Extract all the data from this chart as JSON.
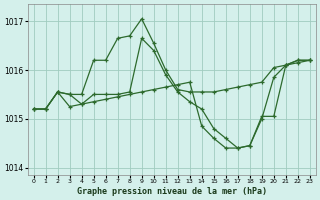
{
  "title": "Graphe pression niveau de la mer (hPa)",
  "background_color": "#d4f0eb",
  "grid_color": "#a0ccbf",
  "line_color": "#2d6a2d",
  "ylim": [
    1013.85,
    1017.35
  ],
  "xlim": [
    -0.5,
    23.5
  ],
  "yticks": [
    1014,
    1015,
    1016,
    1017
  ],
  "xticks": [
    0,
    1,
    2,
    3,
    4,
    5,
    6,
    7,
    8,
    9,
    10,
    11,
    12,
    13,
    14,
    15,
    16,
    17,
    18,
    19,
    20,
    21,
    22,
    23
  ],
  "lineA_x": [
    0,
    1,
    2,
    3,
    4,
    5,
    6,
    7,
    8,
    9,
    10,
    11,
    12,
    13,
    14,
    15,
    16,
    17,
    18,
    19,
    20,
    21,
    22,
    23
  ],
  "lineA_y": [
    1015.2,
    1015.2,
    1015.55,
    1015.5,
    1015.5,
    1016.2,
    1016.2,
    1016.65,
    1016.7,
    1017.05,
    1016.55,
    1016.0,
    1015.6,
    1015.55,
    1015.55,
    1015.55,
    1015.6,
    1015.65,
    1015.7,
    1015.75,
    1016.05,
    1016.1,
    1016.15,
    1016.2
  ],
  "lineB_x": [
    0,
    1,
    2,
    3,
    4,
    5,
    6,
    7,
    8,
    9,
    10,
    11,
    12,
    13,
    14,
    15,
    16,
    17,
    18,
    19,
    20,
    21,
    22,
    23
  ],
  "lineB_y": [
    1015.2,
    1015.2,
    1015.55,
    1015.5,
    1015.3,
    1015.35,
    1015.4,
    1015.45,
    1015.5,
    1015.55,
    1015.6,
    1015.65,
    1015.7,
    1015.75,
    1014.85,
    1014.6,
    1014.4,
    1014.4,
    1014.45,
    1015.05,
    1015.05,
    1016.1,
    1016.2,
    1016.2
  ],
  "lineC_x": [
    0,
    1,
    2,
    3,
    4,
    5,
    6,
    7,
    8,
    9,
    10,
    11,
    12,
    13,
    14,
    15,
    16,
    17,
    18,
    19,
    20,
    21,
    22,
    23
  ],
  "lineC_y": [
    1015.2,
    1015.2,
    1015.55,
    1015.25,
    1015.3,
    1015.5,
    1015.5,
    1015.5,
    1015.55,
    1016.65,
    1016.4,
    1015.9,
    1015.55,
    1015.35,
    1015.2,
    1014.8,
    1014.6,
    1014.4,
    1014.45,
    1015.0,
    1015.85,
    1016.1,
    1016.2,
    1016.2
  ]
}
